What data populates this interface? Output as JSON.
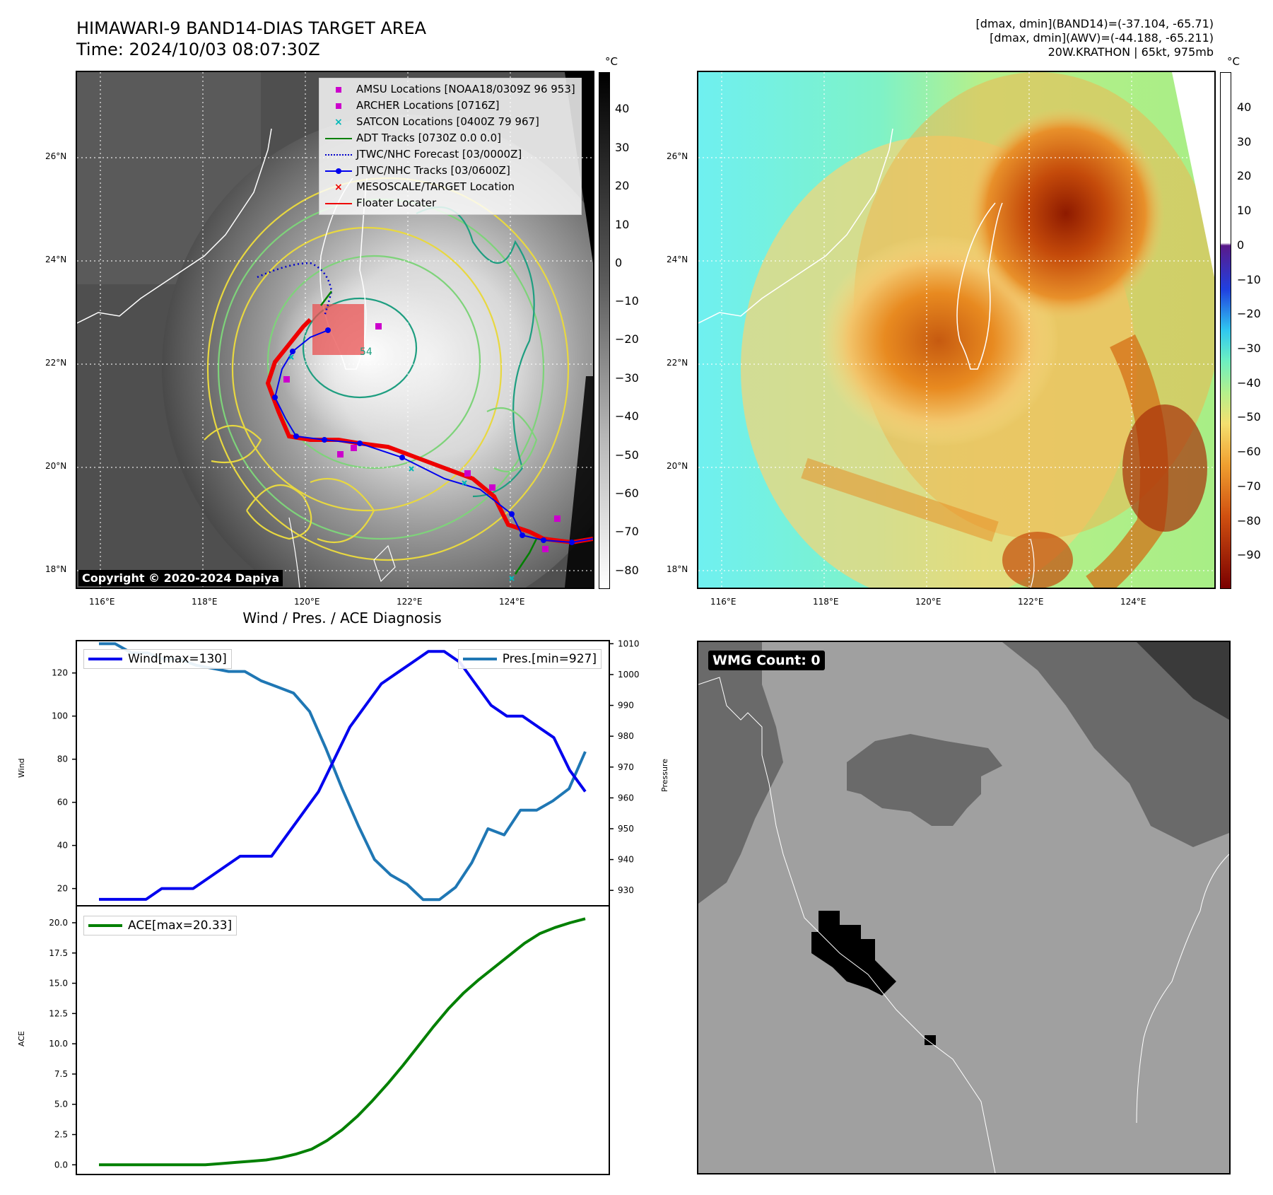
{
  "header": {
    "title_line1": "HIMAWARI-9 BAND14-DIAS TARGET AREA",
    "title_line2": "Time: 2024/10/03 08:07:30Z",
    "info_line1": "[dmax, dmin](BAND14)=(-37.104, -65.71)",
    "info_line2": "[dmax, dmin](AWV)=(-44.188, -65.211)",
    "info_line3": "20W.KRATHON | 65kt, 975mb"
  },
  "map": {
    "lat_labels": [
      "26°N",
      "24°N",
      "22°N",
      "20°N",
      "18°N"
    ],
    "lon_labels": [
      "116°E",
      "118°E",
      "120°E",
      "122°E",
      "124°E"
    ],
    "unit": "°C",
    "copyright": "Copyright © 2020-2024 Dapiya",
    "contour_label": "54"
  },
  "colorbar_left": {
    "ticks": [
      "40",
      "30",
      "20",
      "10",
      "0",
      "−10",
      "−20",
      "−30",
      "−40",
      "−50",
      "−60",
      "−70",
      "−80"
    ]
  },
  "colorbar_right": {
    "ticks": [
      "40",
      "30",
      "20",
      "10",
      "0",
      "−10",
      "−20",
      "−30",
      "−40",
      "−50",
      "−60",
      "−70",
      "−80",
      "−90"
    ]
  },
  "legend": [
    {
      "label": "AMSU Locations [NOAA18/0309Z 96 953]",
      "color": "#cc00cc",
      "symbol": "square"
    },
    {
      "label": "ARCHER Locations [0716Z]",
      "color": "#cc00cc",
      "symbol": "square"
    },
    {
      "label": "SATCON Locations [0400Z 79 967]",
      "color": "#00b8b8",
      "symbol": "x"
    },
    {
      "label": "ADT Tracks [0730Z 0.0 0.0]",
      "color": "#008000",
      "symbol": "line"
    },
    {
      "label": "JTWC/NHC Forecast [03/0000Z]",
      "color": "#0000cc",
      "symbol": "dotted"
    },
    {
      "label": "JTWC/NHC Tracks [03/0600Z]",
      "color": "#0000ee",
      "symbol": "dotline"
    },
    {
      "label": "MESOSCALE/TARGET Location",
      "color": "#ee0000",
      "symbol": "x"
    },
    {
      "label": "Floater Locater",
      "color": "#ee0000",
      "symbol": "line"
    }
  ],
  "wmg": {
    "label": "WMG Count: 0"
  },
  "chart_data": [
    {
      "type": "line",
      "title": "Wind / Pres. / ACE Diagnosis",
      "ylabel": "Wind",
      "ylim": [
        12,
        135
      ],
      "yticks": [
        20,
        40,
        60,
        80,
        100,
        120
      ],
      "series": [
        {
          "name": "Wind",
          "legend": "Wind[max=130]",
          "color": "#0000ee",
          "values": [
            15,
            15,
            15,
            15,
            20,
            20,
            20,
            25,
            30,
            35,
            35,
            35,
            45,
            55,
            65,
            80,
            95,
            105,
            115,
            120,
            125,
            130,
            130,
            125,
            115,
            105,
            100,
            100,
            95,
            90,
            75,
            65
          ]
        }
      ]
    },
    {
      "type": "line",
      "ylabel": "Pressure",
      "ylim": [
        925,
        1011
      ],
      "yticks": [
        930,
        940,
        950,
        960,
        970,
        980,
        990,
        1000,
        1010
      ],
      "series": [
        {
          "name": "Pres.",
          "legend": "Pres.[min=927]",
          "color": "#1f77b4",
          "values": [
            1010,
            1010,
            1007,
            1007,
            1005,
            1005,
            1003,
            1002,
            1001,
            1001,
            998,
            996,
            994,
            988,
            976,
            963,
            951,
            940,
            935,
            932,
            927,
            927,
            931,
            939,
            950,
            948,
            956,
            956,
            959,
            963,
            975
          ]
        }
      ]
    },
    {
      "type": "line",
      "ylabel": "ACE",
      "ylim": [
        -0.8,
        21.4
      ],
      "yticks": [
        0.0,
        2.5,
        5.0,
        7.5,
        10.0,
        12.5,
        15.0,
        17.5,
        20.0
      ],
      "ytick_labels": [
        "0.0",
        "2.5",
        "5.0",
        "7.5",
        "10.0",
        "12.5",
        "15.0",
        "17.5",
        "20.0"
      ],
      "series": [
        {
          "name": "ACE",
          "legend": "ACE[max=20.33]",
          "color": "#008000",
          "values": [
            0,
            0,
            0,
            0,
            0,
            0,
            0,
            0,
            0.1,
            0.2,
            0.3,
            0.4,
            0.6,
            0.9,
            1.3,
            2.0,
            2.9,
            4.0,
            5.3,
            6.7,
            8.2,
            9.8,
            11.4,
            12.9,
            14.2,
            15.3,
            16.3,
            17.3,
            18.3,
            19.1,
            19.6,
            20.0,
            20.33
          ]
        }
      ]
    }
  ]
}
